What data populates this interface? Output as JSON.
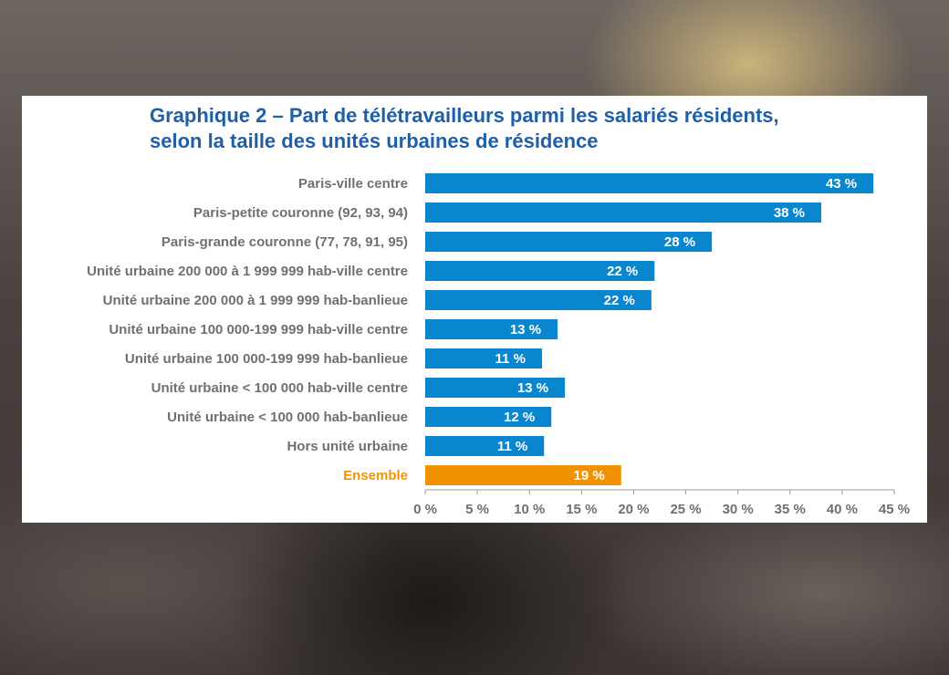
{
  "chart_data": {
    "type": "bar",
    "orientation": "horizontal",
    "title_lines": [
      "Graphique 2 – Part de télétravailleurs parmi les salariés résidents,",
      "selon la taille des unités urbaines de résidence"
    ],
    "categories": [
      "Paris-ville centre",
      "Paris-petite couronne (92, 93, 94)",
      "Paris-grande couronne (77, 78, 91, 95)",
      "Unité urbaine 200 000 à 1 999 999 hab-ville centre",
      "Unité urbaine 200 000 à 1 999 999 hab-banlieue",
      "Unité urbaine 100 000-199 999 hab-ville centre",
      "Unité urbaine 100 000-199 999 hab-banlieue",
      "Unité urbaine < 100 000 hab-ville centre",
      "Unité urbaine < 100 000 hab-banlieue",
      "Hors unité urbaine",
      "Ensemble"
    ],
    "values": [
      43,
      38,
      27.5,
      22,
      21.7,
      12.7,
      11.2,
      13.4,
      12.1,
      11.4,
      18.8
    ],
    "value_labels": [
      "43 %",
      "38 %",
      "28 %",
      "22 %",
      "22 %",
      "13 %",
      "11 %",
      "13 %",
      "12 %",
      "11 %",
      "19 %"
    ],
    "xlim": [
      0,
      45
    ],
    "x_ticks": [
      0,
      5,
      10,
      15,
      20,
      25,
      30,
      35,
      40,
      45
    ],
    "x_tick_labels": [
      "0 %",
      "5 %",
      "10 %",
      "15 %",
      "20 %",
      "25 %",
      "30 %",
      "35 %",
      "40 %",
      "45 %"
    ],
    "highlight_category": "Ensemble",
    "colors": {
      "bar": "#0a86cf",
      "highlight": "#f39200",
      "title": "#1f5fa8",
      "label": "#707070",
      "axis": "#9a9a9a"
    },
    "grid": false
  }
}
